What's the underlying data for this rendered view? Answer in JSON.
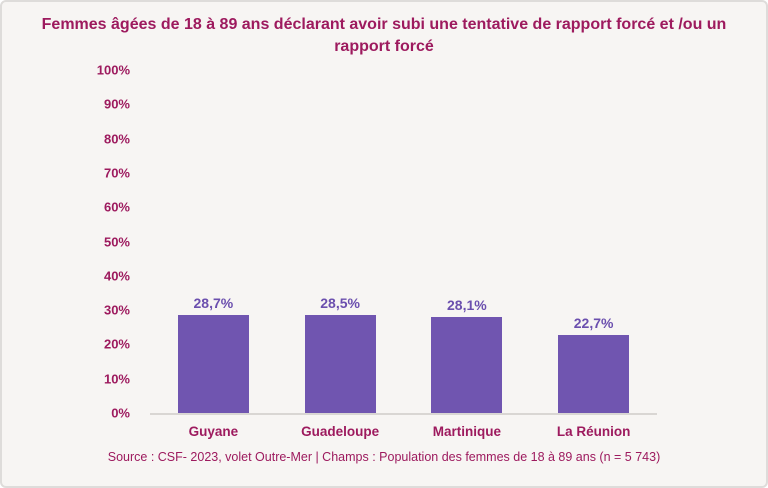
{
  "colors": {
    "title": "#9d1a5e",
    "bar": "#7055b0",
    "value_label": "#6b4fae",
    "background": "#f7f5f3",
    "axis_line": "#d9d6d3",
    "border": "#dedcda"
  },
  "chart_data": {
    "type": "bar",
    "title": "Femmes âgées de 18 à 89 ans déclarant avoir subi une tentative de rapport forcé et /ou un rapport forcé",
    "categories": [
      "Guyane",
      "Guadeloupe",
      "Martinique",
      "La Réunion"
    ],
    "values": [
      28.7,
      28.5,
      28.1,
      22.7
    ],
    "value_labels": [
      "28,7%",
      "28,5%",
      "28,1%",
      "22,7%"
    ],
    "xlabel": "",
    "ylabel": "",
    "ylim": [
      0,
      100
    ],
    "y_ticks": [
      "100%",
      "90%",
      "80%",
      "70%",
      "60%",
      "50%",
      "40%",
      "30%",
      "20%",
      "10%",
      "0%"
    ],
    "grid": false,
    "legend": null
  },
  "footer": {
    "source": "Source : CSF- 2023, volet Outre-Mer | Champs : Population des femmes de 18 à 89 ans (n = 5 743)"
  }
}
